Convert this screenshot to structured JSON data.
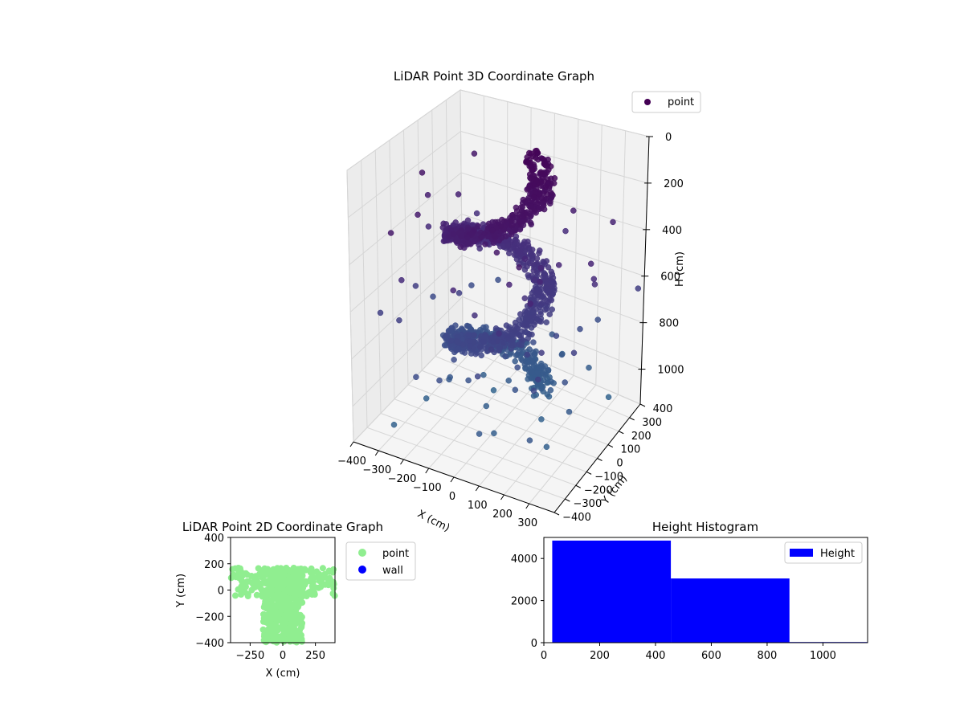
{
  "chart_data": [
    {
      "type": "scatter",
      "projection": "3d",
      "title": "LiDAR Point 3D Coordinate Graph",
      "xlabel": "X (cm)",
      "ylabel": "Y (cm)",
      "zlabel": "H (cm)",
      "xlim": [
        -400,
        400
      ],
      "ylim": [
        -400,
        400
      ],
      "zlim": [
        1150,
        0
      ],
      "x_ticks": [
        -400,
        -300,
        -200,
        -100,
        0,
        100,
        200,
        300
      ],
      "y_ticks": [
        -400,
        -300,
        -200,
        -100,
        0,
        100,
        200,
        300,
        400
      ],
      "z_ticks": [
        0,
        200,
        400,
        600,
        800,
        1000
      ],
      "grid": true,
      "colormap": "viridis",
      "legend": {
        "position": "top-right",
        "entries": [
          {
            "label": "point",
            "color": "#440154"
          }
        ]
      },
      "series": [
        {
          "name": "point",
          "structure": "spiral ramp of dense points rising from H~1000 (lower center) to H~0 (upper ring), with scattered outliers"
        }
      ]
    },
    {
      "type": "scatter",
      "title": "LiDAR Point 2D Coordinate Graph",
      "xlabel": "X (cm)",
      "ylabel": "Y (cm)",
      "xlim": [
        -400,
        400
      ],
      "ylim": [
        -400,
        400
      ],
      "x_ticks": [
        -250,
        0,
        250
      ],
      "y_ticks": [
        -400,
        -200,
        0,
        200,
        400
      ],
      "legend": {
        "position": "outside-right",
        "entries": [
          {
            "label": "point",
            "color": "#90ee90"
          },
          {
            "label": "wall",
            "color": "#0000ff"
          }
        ]
      },
      "series": [
        {
          "name": "point",
          "color": "#90ee90",
          "extent_x": [
            -400,
            400
          ],
          "extent_y": [
            -400,
            170
          ]
        }
      ]
    },
    {
      "type": "bar",
      "title": "Height Histogram",
      "xlabel": "",
      "ylabel": "",
      "xlim": [
        0,
        1160
      ],
      "ylim": [
        0,
        5000
      ],
      "x_ticks": [
        0,
        200,
        400,
        600,
        800,
        1000
      ],
      "y_ticks": [
        0,
        2000,
        4000
      ],
      "legend": {
        "position": "top-right",
        "entries": [
          {
            "label": "Height",
            "color": "#0000ff"
          }
        ]
      },
      "bins": [
        {
          "start": 30,
          "end": 455,
          "count": 4850
        },
        {
          "start": 455,
          "end": 880,
          "count": 3050
        },
        {
          "start": 880,
          "end": 1160,
          "count": 30
        }
      ],
      "color": "#0000ff"
    }
  ]
}
